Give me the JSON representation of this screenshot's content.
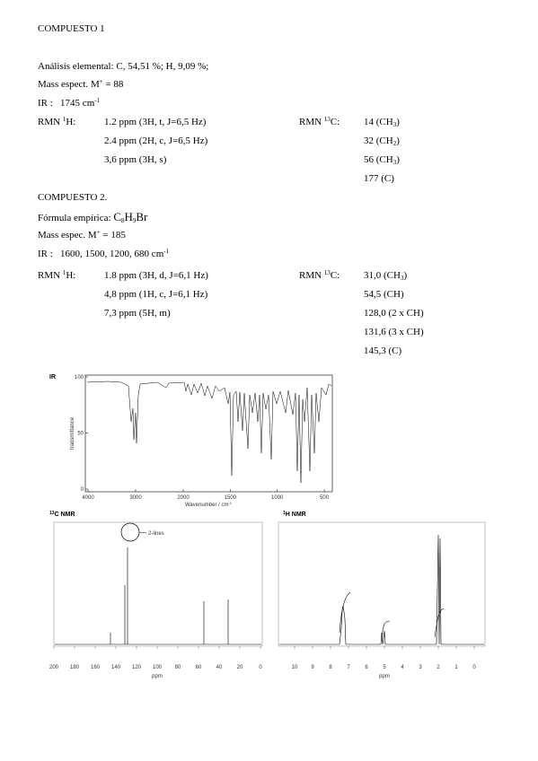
{
  "compound1": {
    "title": "COMPUESTO 1",
    "lines": [
      {
        "text": [
          "Análisis elemental: C, 54,51 %; H, 9,09 %;"
        ]
      },
      {
        "text": [
          "Mass espect. M",
          {
            "sup": "+"
          },
          " = 88"
        ]
      },
      {
        "text": [
          "IR :   1745 cm",
          {
            "sup": "-1"
          }
        ]
      },
      {
        "label": [
          "RMN ",
          {
            "sup": "1"
          },
          "H:"
        ],
        "h": [
          "1.2 ppm (3H, t, J=6,5 Hz)"
        ],
        "c_label": [
          "RMN ",
          {
            "sup": "13"
          },
          "C:"
        ],
        "c": [
          "14 (CH",
          {
            "sub": "3"
          },
          ")"
        ]
      },
      {
        "h": [
          "2.4 ppm (2H, c, J=6,5 Hz)"
        ],
        "c": [
          "32 (CH",
          {
            "sub": "2"
          },
          ")"
        ]
      },
      {
        "h": [
          "3,6 ppm (3H, s)"
        ],
        "c": [
          "56 (CH",
          {
            "sub": "3"
          },
          ")"
        ]
      },
      {
        "c": [
          "177 (C)"
        ]
      }
    ]
  },
  "compound2": {
    "title": "COMPUESTO 2.",
    "lines": [
      {
        "text": [
          "Fórmula empírica: ",
          "C",
          {
            "sub": "8"
          },
          "H",
          {
            "sub": "9"
          },
          "Br"
        ]
      },
      {
        "text": [
          "Mass espec. M",
          {
            "sup": "+"
          },
          " = 185"
        ]
      },
      {
        "text": [
          "IR :   1600, 1500, 1200, 680 cm",
          {
            "sup": "-1"
          }
        ]
      },
      {
        "label": [
          "RMN ",
          {
            "sup": "1"
          },
          "H:"
        ],
        "h": [
          "1.8 ppm (3H, d, J=6,1 Hz)"
        ],
        "c_label": [
          "RMN ",
          {
            "sup": "13"
          },
          "C:"
        ],
        "c": [
          "31,0 (CH",
          {
            "sub": "3"
          },
          ")"
        ]
      },
      {
        "h": [
          "4,8 ppm (1H, c, J=6,1 Hz)"
        ],
        "c": [
          "54,5 (CH)"
        ]
      },
      {
        "h": [
          "7,3 ppm (5H, m)"
        ],
        "c": [
          "128,0 (2 x CH)"
        ]
      },
      {
        "c": [
          "131,6 (3 x CH)"
        ]
      },
      {
        "c": [
          "145,3 (C)"
        ]
      }
    ]
  },
  "spectra": {
    "ir": {
      "label": "IR",
      "xlabel": "Wavenumber / cm",
      "xlabel_sup": "-1",
      "ylabel": "transmittance",
      "xticks": [
        4000,
        3000,
        2000,
        1500,
        1000,
        500
      ],
      "yticks": [
        100,
        50,
        0
      ]
    },
    "c13": {
      "label_sup": "13",
      "label": "C NMR",
      "annotation": "2-lines",
      "xlabel": "ppm",
      "xticks": [
        200,
        180,
        160,
        140,
        120,
        100,
        80,
        60,
        40,
        20,
        0
      ]
    },
    "h1": {
      "label_sup": "1",
      "label": "H NMR",
      "xlabel": "ppm",
      "xticks": [
        10,
        9,
        8,
        7,
        6,
        5,
        4,
        3,
        2,
        1,
        0
      ]
    }
  }
}
